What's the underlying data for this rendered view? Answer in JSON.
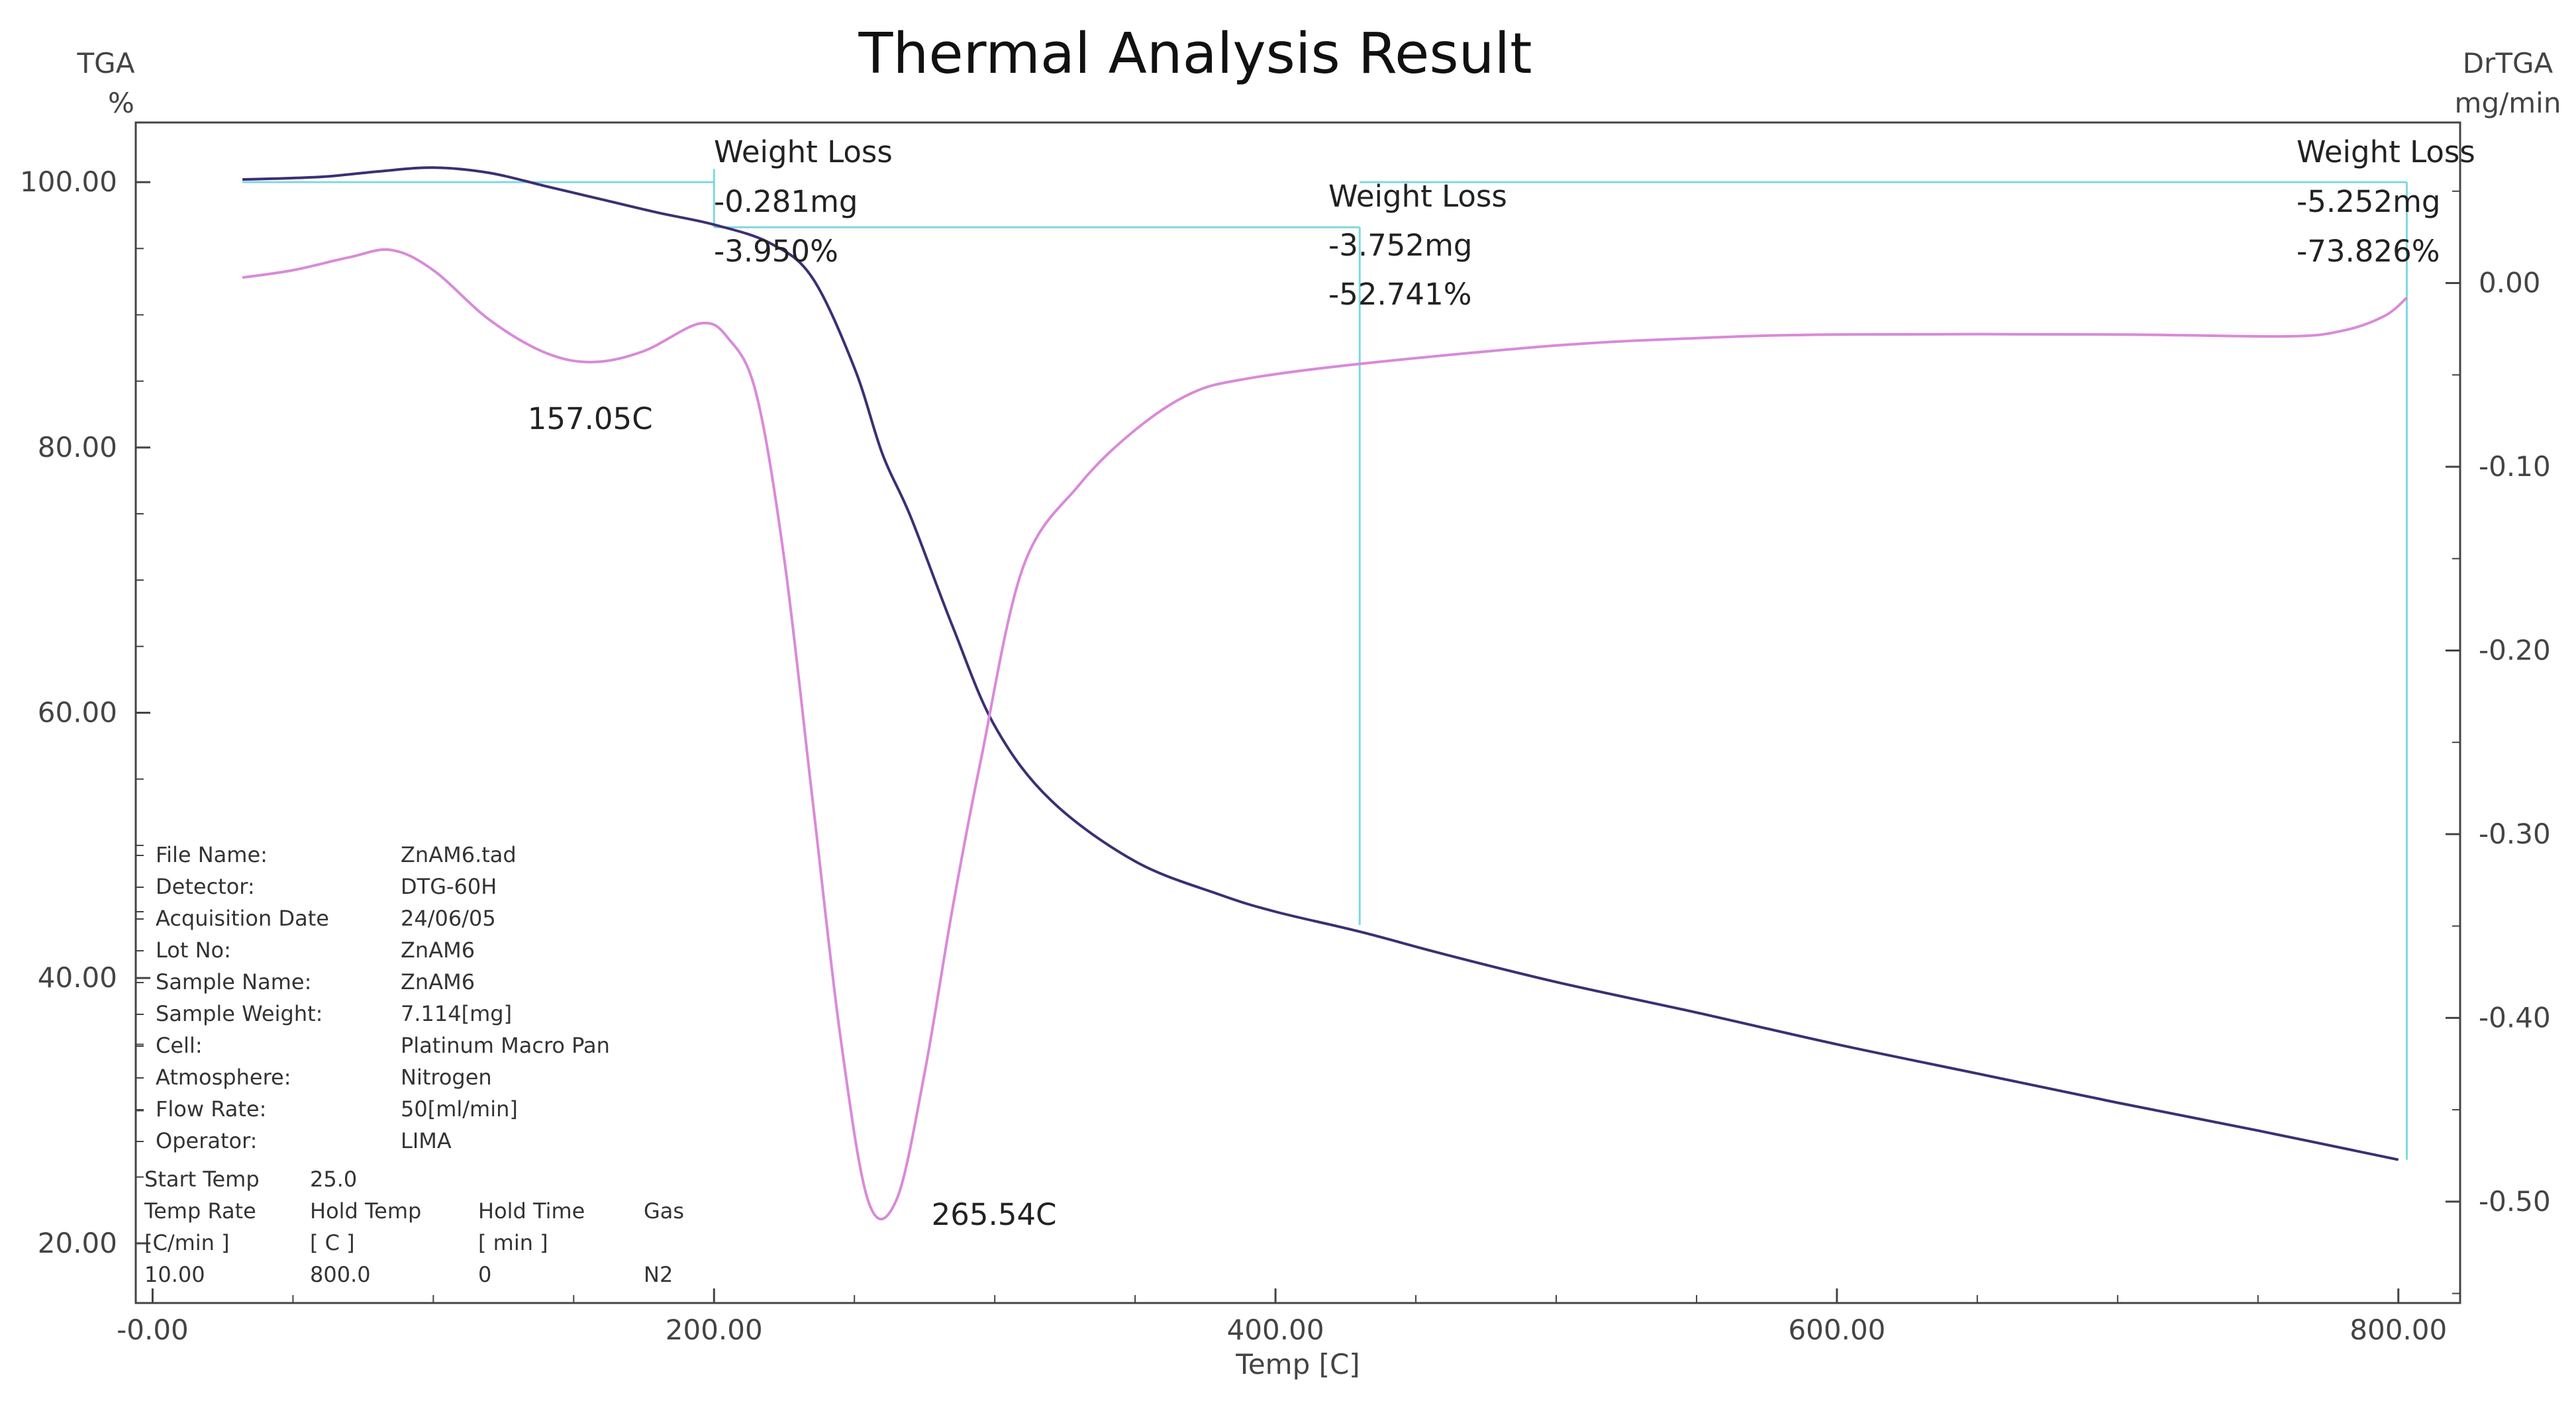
{
  "chart_data": {
    "type": "line",
    "title": "Thermal Analysis Result",
    "xlabel": "Temp [C]",
    "xlim": [
      -6,
      822
    ],
    "x_ticks": [
      "-0.00",
      "200.00",
      "400.00",
      "600.00",
      "800.00"
    ],
    "left_axis": {
      "label": "TGA",
      "unit": "%",
      "ylim": [
        15.5,
        104.5
      ],
      "ticks": [
        "100.00",
        "80.00",
        "60.00",
        "40.00",
        "20.00"
      ]
    },
    "right_axis": {
      "label": "DrTGA",
      "unit": "mg/min",
      "ylim": [
        -0.5552,
        0.0874
      ],
      "ticks": [
        "0.00",
        "-0.10",
        "-0.20",
        "-0.30",
        "-0.40",
        "-0.50"
      ]
    },
    "grid": false,
    "series": [
      {
        "name": "TGA",
        "axis": "left",
        "color": "#3c2f73",
        "x": [
          32,
          60,
          80,
          100,
          120,
          140,
          160,
          180,
          200,
          220,
          235,
          250,
          260,
          270,
          285,
          300,
          320,
          350,
          380,
          400,
          430,
          460,
          500,
          550,
          600,
          650,
          700,
          750,
          800
        ],
        "y": [
          100.2,
          100.4,
          100.8,
          101.1,
          100.7,
          99.7,
          98.7,
          97.7,
          96.8,
          95.4,
          92.8,
          86.0,
          79.5,
          74.8,
          66.5,
          59.0,
          53.4,
          48.8,
          46.3,
          45.0,
          43.5,
          41.8,
          39.7,
          37.4,
          35.0,
          32.8,
          30.6,
          28.5,
          26.3
        ]
      },
      {
        "name": "DrTGA",
        "axis": "right",
        "color": "#d98ad9",
        "x": [
          32,
          50,
          70,
          85,
          100,
          120,
          140,
          157,
          175,
          195,
          205,
          215,
          225,
          235,
          245,
          255,
          265,
          275,
          285,
          295,
          310,
          330,
          350,
          370,
          390,
          430,
          500,
          550,
          600,
          700,
          760,
          780,
          795,
          803
        ],
        "y": [
          0.003,
          0.007,
          0.014,
          0.018,
          0.007,
          -0.02,
          -0.038,
          -0.043,
          -0.037,
          -0.022,
          -0.03,
          -0.06,
          -0.15,
          -0.28,
          -0.41,
          -0.5,
          -0.499,
          -0.43,
          -0.34,
          -0.26,
          -0.155,
          -0.11,
          -0.08,
          -0.06,
          -0.052,
          -0.044,
          -0.034,
          -0.03,
          -0.028,
          -0.028,
          -0.029,
          -0.026,
          -0.018,
          -0.008
        ]
      }
    ],
    "annotations": [
      {
        "label": "Weight Loss",
        "mass": "-0.281mg",
        "percent": "-3.950%",
        "x": 200
      },
      {
        "label": "Weight Loss",
        "mass": "-3.752mg",
        "percent": "-52.741%",
        "x": 430
      },
      {
        "label": "Weight Loss",
        "mass": "-5.252mg",
        "percent": "-73.826%",
        "x": 803
      }
    ],
    "step_lines": [
      {
        "from_x": 32,
        "to_x": 200,
        "y": 100.0
      },
      {
        "from_x": 200,
        "to_x": 430,
        "y": 96.6
      },
      {
        "from_x": 430,
        "to_x": 803,
        "y": 100.0
      }
    ],
    "peaks": [
      {
        "label": "157.05C",
        "x": 157.05
      },
      {
        "label": "265.54C",
        "x": 265.54
      }
    ],
    "info_table": [
      {
        "label": "File Name:",
        "value": "ZnAM6.tad"
      },
      {
        "label": "Detector:",
        "value": "DTG-60H"
      },
      {
        "label": "Acquisition Date",
        "value": "24/06/05"
      },
      {
        "label": "Lot No:",
        "value": "ZnAM6"
      },
      {
        "label": "Sample Name:",
        "value": "ZnAM6"
      },
      {
        "label": "Sample Weight:",
        "value": "7.114[mg]"
      },
      {
        "label": "Cell:",
        "value": "Platinum Macro Pan"
      },
      {
        "label": "Atmosphere:",
        "value": "Nitrogen"
      },
      {
        "label": "Flow Rate:",
        "value": "50[ml/min]"
      },
      {
        "label": "Operator:",
        "value": "LIMA"
      }
    ],
    "program": {
      "start_label": "Start Temp",
      "start_value": "25.0",
      "headers": [
        "Temp Rate",
        "Hold Temp",
        "Hold Time",
        "Gas"
      ],
      "units": [
        "[C/min ]",
        "[ C ]",
        "[ min ]",
        ""
      ],
      "rows": [
        [
          "10.00",
          "800.0",
          "0",
          "N2"
        ]
      ]
    }
  }
}
